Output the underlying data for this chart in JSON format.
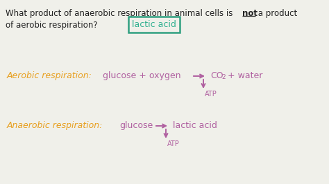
{
  "bg_color": "#f0f0ea",
  "q_color": "#222222",
  "orange_color": "#e8a020",
  "purple_color": "#b060a0",
  "teal_color": "#30b090",
  "teal_box_color": "#30a080",
  "figsize": [
    4.74,
    2.66
  ],
  "dpi": 100,
  "question_part1": "What product of anaerobic respiration in animal cells is ",
  "question_not": "not",
  "question_part2": " a product",
  "question_line2": "of aerobic respiration?",
  "answer_text": "lactic acid",
  "aerobic_label": "Aerobic respiration:",
  "aerobic_reactants": "glucose + oxygen",
  "aerobic_co2": "CO",
  "aerobic_sub2": "2",
  "aerobic_water": " + water",
  "aerobic_atp": "ATP",
  "anaerobic_label": "Anaerobic respiration:",
  "anaerobic_reactant": "glucose",
  "anaerobic_product": "lactic acid",
  "anaerobic_atp": "ATP"
}
